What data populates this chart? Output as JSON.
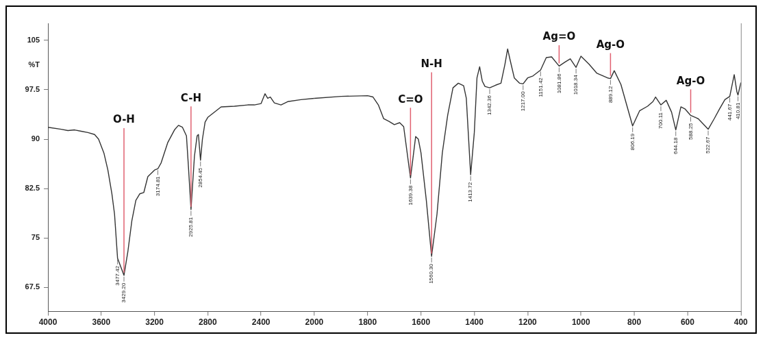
{
  "chart_data": [
    {
      "type": "line",
      "ylabel": "%T",
      "xlim": [
        4000,
        2000
      ],
      "xticks": [
        4000,
        3600,
        3200,
        2800,
        2400,
        2000
      ],
      "ylim": [
        63.8,
        107.6
      ],
      "yticks": [
        67.5,
        75,
        82.5,
        90,
        97.5,
        105
      ],
      "grid": false,
      "legend": false,
      "marker": "none",
      "line_style": "solid",
      "series": [
        {
          "color": "#333333",
          "x": [
            4000,
            3900,
            3850,
            3800,
            3750,
            3700,
            3650,
            3620,
            3580,
            3550,
            3520,
            3500,
            3477.42,
            3429.2,
            3400,
            3370,
            3340,
            3310,
            3280,
            3250,
            3200,
            3174.81,
            3150,
            3100,
            3050,
            3020,
            2990,
            2960,
            2945,
            2925.81,
            2900,
            2880,
            2870,
            2854.45,
            2840,
            2820,
            2800,
            2700,
            2600,
            2500,
            2450,
            2400,
            2370,
            2350,
            2330,
            2300,
            2250,
            2200,
            2100,
            2000
          ],
          "values": [
            91.8,
            91.5,
            91.3,
            91.4,
            91.2,
            91,
            90.7,
            90,
            87.9,
            85.3,
            81.7,
            78.6,
            71.9,
            69.3,
            72.9,
            77.6,
            80.7,
            81.7,
            81.9,
            84.3,
            85.3,
            85.5,
            86.4,
            89.5,
            91.4,
            92.1,
            91.8,
            90.5,
            85.8,
            79.3,
            87.4,
            90.5,
            90.7,
            86.8,
            90,
            92.6,
            93.3,
            94.9,
            95,
            95.2,
            95.2,
            95.4,
            96.9,
            96.2,
            96.4,
            95.5,
            95.2,
            95.7,
            96,
            96.2
          ]
        }
      ],
      "annotations": [
        {
          "text": "O-H",
          "x": 3429.2,
          "y": 69.3
        },
        {
          "text": "C-H",
          "x": 2925.81,
          "y": 79.3
        },
        {
          "text": "3477.42",
          "x": 3477.42,
          "y": 71.9
        },
        {
          "text": "3429.20",
          "x": 3429.2,
          "y": 69.3
        },
        {
          "text": "3174.81",
          "x": 3174.81,
          "y": 85.5
        },
        {
          "text": "2925.81",
          "x": 2925.81,
          "y": 79.3
        },
        {
          "text": "2854.45",
          "x": 2854.45,
          "y": 86.8
        }
      ]
    },
    {
      "type": "line",
      "xlim": [
        2000,
        400
      ],
      "xticks": [
        1800,
        1600,
        1400,
        1200,
        1000,
        800,
        600,
        400
      ],
      "ylim": [
        63.8,
        107.6
      ],
      "tick_labels": "x",
      "grid": false,
      "legend": false,
      "marker": "none",
      "line_style": "solid",
      "series": [
        {
          "color": "#333333",
          "x": [
            2000,
            1900,
            1800,
            1780,
            1760,
            1740,
            1720,
            1700,
            1680,
            1665,
            1639.38,
            1620,
            1610,
            1600,
            1580,
            1560.3,
            1540,
            1520,
            1500,
            1480,
            1460,
            1440,
            1430,
            1413.72,
            1400,
            1390,
            1380,
            1370,
            1360,
            1342.36,
            1320,
            1300,
            1285,
            1275,
            1265,
            1250,
            1230,
            1217,
            1200,
            1180,
            1151.42,
            1130,
            1110,
            1081.86,
            1060,
            1040,
            1018.34,
            1000,
            970,
            940,
            900,
            889.12,
            875,
            850,
            806.19,
            780,
            750,
            730,
            720,
            700.11,
            680,
            660,
            644.18,
            625,
            610,
            588.25,
            560,
            522.67,
            500,
            480,
            460,
            441.67,
            425,
            415,
            410.81,
            400
          ],
          "values": [
            96.2,
            96.5,
            96.6,
            96.4,
            95.2,
            93.1,
            92.7,
            92.2,
            92.5,
            91.9,
            84.1,
            90.4,
            90,
            87.9,
            80.7,
            72.2,
            78.6,
            87.9,
            93.6,
            97.8,
            98.5,
            98.1,
            96.2,
            84.6,
            91,
            99.3,
            101,
            98.8,
            98,
            97.8,
            98.2,
            98.5,
            101.4,
            103.7,
            101.9,
            99.3,
            98.5,
            98.4,
            99.3,
            99.6,
            100.5,
            102.4,
            102.5,
            101.1,
            101.7,
            102.2,
            100.9,
            102.6,
            101.4,
            100,
            99.3,
            99.2,
            100.4,
            98.3,
            92,
            94.3,
            95,
            95.7,
            96.4,
            95.2,
            95.9,
            94.1,
            91.4,
            94.9,
            94.6,
            93.6,
            93.1,
            91.5,
            93.1,
            94.6,
            96,
            96.5,
            99.8,
            97.2,
            96.7,
            98.6
          ]
        }
      ],
      "annotations": [
        {
          "text": "C=O",
          "x": 1639.38,
          "y": 84.1
        },
        {
          "text": "N-H",
          "x": 1560.3,
          "y": 72.2
        },
        {
          "text": "Ag=O",
          "x": 1081.86,
          "y": 101.1
        },
        {
          "text": "Ag-O",
          "x": 889.12,
          "y": 99.2
        },
        {
          "text": "Ag-O",
          "x": 588.25,
          "y": 93.6
        },
        {
          "text": "1639.38",
          "x": 1639.38,
          "y": 84.1
        },
        {
          "text": "1560.30",
          "x": 1560.3,
          "y": 72.2
        },
        {
          "text": "1413.72",
          "x": 1413.72,
          "y": 84.6
        },
        {
          "text": "1342.36",
          "x": 1342.36,
          "y": 97.8
        },
        {
          "text": "1217.00",
          "x": 1217,
          "y": 98.4
        },
        {
          "text": "1151.42",
          "x": 1151.42,
          "y": 100.5
        },
        {
          "text": "1081.86",
          "x": 1081.86,
          "y": 101.1
        },
        {
          "text": "1018.34",
          "x": 1018.34,
          "y": 100.9
        },
        {
          "text": "889.12",
          "x": 889.12,
          "y": 99.2
        },
        {
          "text": "806.19",
          "x": 806.19,
          "y": 92
        },
        {
          "text": "700.11",
          "x": 700.11,
          "y": 95.2
        },
        {
          "text": "644.18",
          "x": 644.18,
          "y": 91.4
        },
        {
          "text": "588.25",
          "x": 588.25,
          "y": 93.6
        },
        {
          "text": "522.67",
          "x": 522.67,
          "y": 91.5
        },
        {
          "text": "441.67",
          "x": 441.67,
          "y": 96.5
        },
        {
          "text": "410.81",
          "x": 410.81,
          "y": 96.7
        }
      ]
    }
  ]
}
